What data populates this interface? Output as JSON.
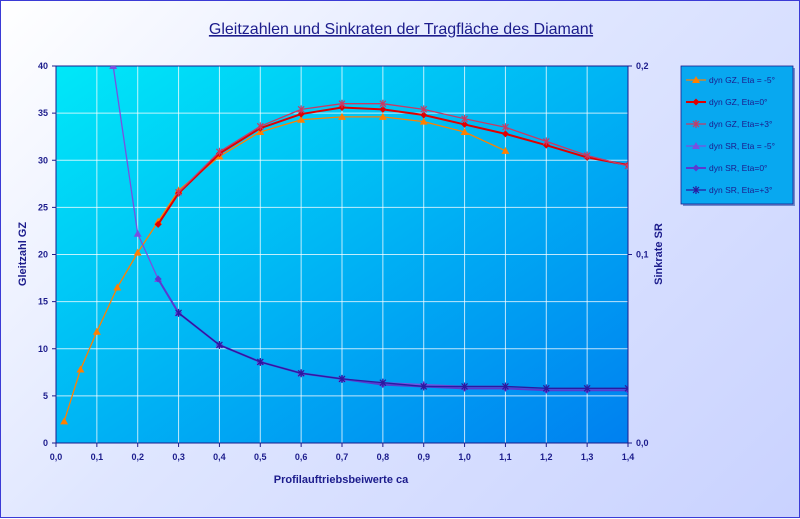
{
  "chart_data": {
    "type": "line",
    "title": "Gleitzahlen und Sinkraten der Tragfläche des Diamant",
    "xlabel": "Profilauftriebsbeiwerte ca",
    "ylabel": "Gleitzahl GZ",
    "y2label": "Sinkrate SR",
    "xlim": [
      0,
      1.4
    ],
    "ylim": [
      0,
      40
    ],
    "y2lim": [
      0,
      0.2
    ],
    "x_ticks": [
      "0,0",
      "0,1",
      "0,2",
      "0,3",
      "0,4",
      "0,5",
      "0,6",
      "0,7",
      "0,8",
      "0,9",
      "1,0",
      "1,1",
      "1,2",
      "1,3",
      "1,4"
    ],
    "y_ticks": [
      "0",
      "5",
      "10",
      "15",
      "20",
      "25",
      "30",
      "35",
      "40"
    ],
    "y2_ticks": [
      "0,0",
      "0,1",
      "0,2"
    ],
    "grid": true,
    "legend_position": "right",
    "plot_gradient": [
      "#00e8f8",
      "#0080f0"
    ],
    "series": [
      {
        "name": "dyn GZ, Eta = -5°",
        "axis": "left",
        "color": "#ff8000",
        "marker": "triangle",
        "x": [
          0.02,
          0.06,
          0.1,
          0.15,
          0.2,
          0.25,
          0.3,
          0.4,
          0.5,
          0.6,
          0.7,
          0.8,
          0.9,
          1.0,
          1.1
        ],
        "y": [
          2.3,
          7.8,
          11.8,
          16.5,
          20.2,
          23.5,
          26.8,
          30.4,
          33.0,
          34.3,
          34.6,
          34.6,
          34.1,
          33.0,
          31.0
        ]
      },
      {
        "name": "dyn GZ, Eta=0°",
        "axis": "left",
        "color": "#e00000",
        "marker": "diamond",
        "x": [
          0.25,
          0.3,
          0.4,
          0.5,
          0.6,
          0.7,
          0.8,
          0.9,
          1.0,
          1.1,
          1.2,
          1.3,
          1.4
        ],
        "y": [
          23.2,
          26.5,
          30.7,
          33.4,
          34.9,
          35.6,
          35.4,
          34.8,
          33.8,
          32.8,
          31.6,
          30.3,
          29.5
        ]
      },
      {
        "name": "dyn GZ, Eta=+3°",
        "axis": "left",
        "color": "#c83a64",
        "marker": "star",
        "x": [
          0.3,
          0.4,
          0.5,
          0.6,
          0.7,
          0.8,
          0.9,
          1.0,
          1.1,
          1.2,
          1.3,
          1.4
        ],
        "y": [
          26.6,
          30.9,
          33.6,
          35.4,
          36.0,
          36.0,
          35.4,
          34.4,
          33.5,
          32.0,
          30.5,
          29.4
        ]
      },
      {
        "name": "dyn SR, Eta = -5°",
        "axis": "right",
        "color": "#7a50e0",
        "marker": "triangle",
        "x": [
          0.14,
          0.2,
          0.25,
          0.3,
          0.4,
          0.5,
          0.6,
          0.7,
          0.8,
          0.9,
          1.0,
          1.1
        ],
        "y": [
          0.2,
          0.111,
          0.087,
          0.069,
          0.052,
          0.043,
          0.037,
          0.034,
          0.032,
          0.031,
          0.03,
          0.03
        ]
      },
      {
        "name": "dyn SR, Eta=0°",
        "axis": "right",
        "color": "#5a3ad0",
        "marker": "diamond",
        "x": [
          0.25,
          0.3,
          0.4,
          0.5,
          0.6,
          0.7,
          0.8,
          0.9,
          1.0,
          1.1,
          1.2,
          1.3,
          1.4
        ],
        "y": [
          0.087,
          0.069,
          0.052,
          0.043,
          0.037,
          0.034,
          0.031,
          0.03,
          0.029,
          0.029,
          0.028,
          0.028,
          0.028
        ]
      },
      {
        "name": "dyn SR, Eta=+3°",
        "axis": "right",
        "color": "#2a1aa0",
        "marker": "star",
        "x": [
          0.3,
          0.4,
          0.5,
          0.6,
          0.7,
          0.8,
          0.9,
          1.0,
          1.1,
          1.2,
          1.3,
          1.4
        ],
        "y": [
          0.069,
          0.052,
          0.043,
          0.037,
          0.034,
          0.032,
          0.03,
          0.03,
          0.03,
          0.029,
          0.029,
          0.029
        ]
      }
    ]
  }
}
